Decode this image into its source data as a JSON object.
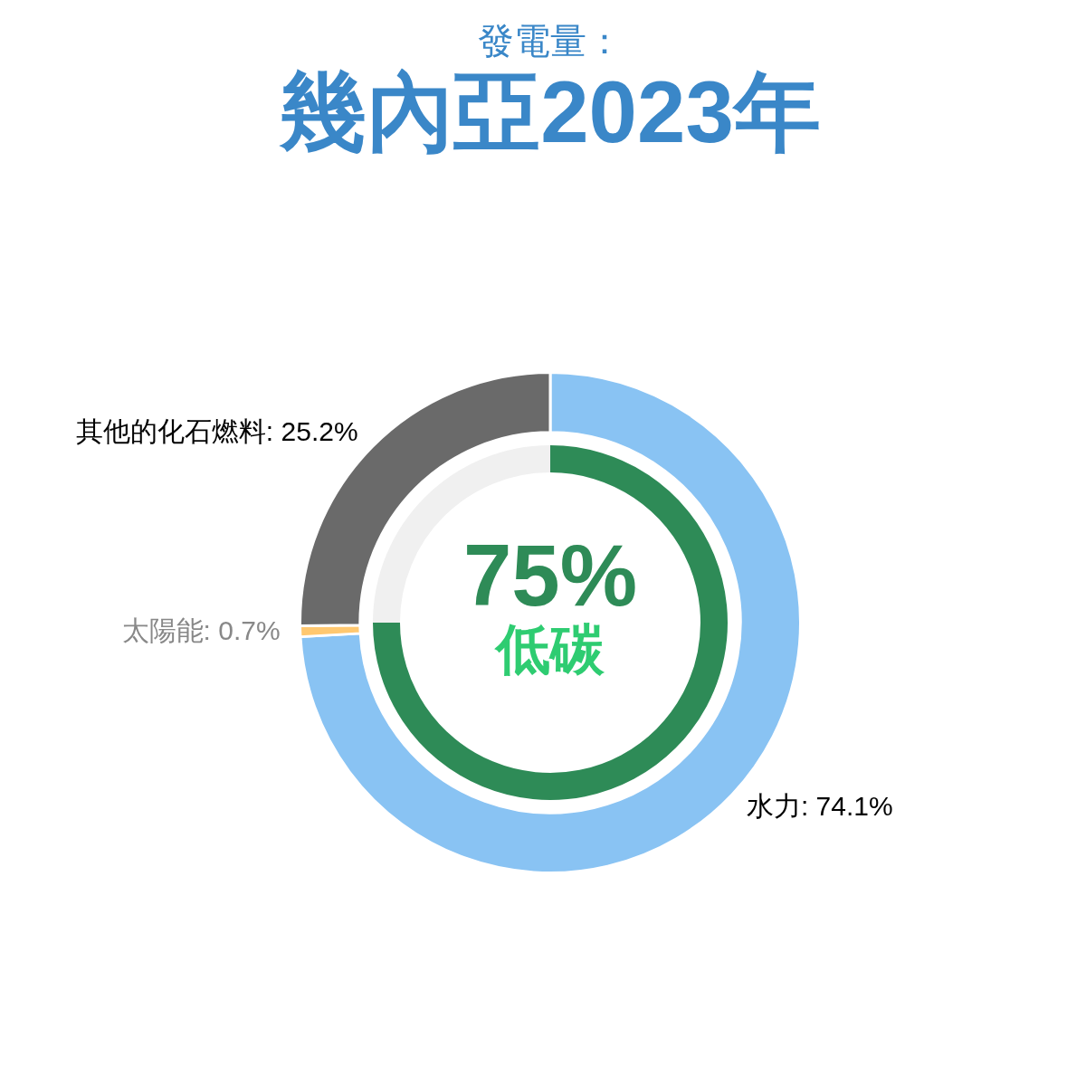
{
  "chart_data": [
    {
      "type": "donut",
      "subtitle": "發電量：",
      "title": "幾內亞2023年",
      "categories": [
        "水力",
        "太陽能",
        "其他的化石燃料"
      ],
      "values": [
        74.1,
        0.7,
        25.2
      ],
      "colors": [
        "#89c3f3",
        "#ffc870",
        "#6a6a6a"
      ],
      "value_labels": [
        "74.1%",
        "0.7%",
        "25.2%"
      ],
      "legend": false
    },
    {
      "type": "donut",
      "categories": [
        "低碳",
        null
      ],
      "values": [
        75,
        25
      ],
      "colors": [
        "#2e8b57",
        "#f0f0f0"
      ],
      "value_labels": [
        "75%",
        null
      ],
      "legend": false
    }
  ]
}
